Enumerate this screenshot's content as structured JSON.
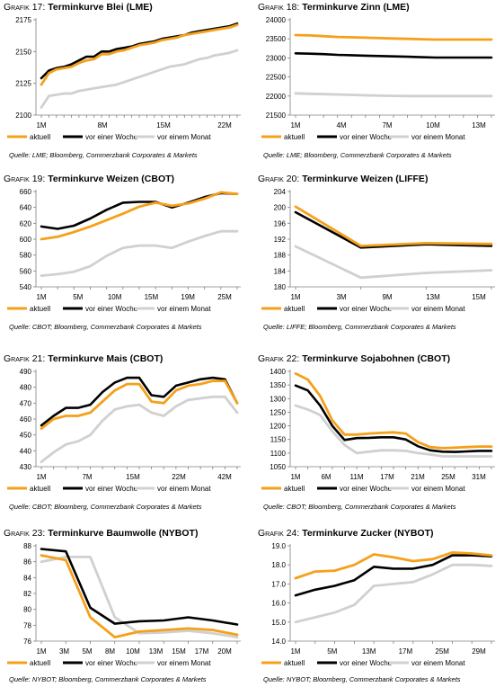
{
  "colors": {
    "aktuell": "#f5a01a",
    "woche": "#000000",
    "monat": "#d0d0d0",
    "axis": "#7f7f7f"
  },
  "legend": {
    "aktuell": "aktuell",
    "woche": "vor einer Woche",
    "monat": "vor einem Monat"
  },
  "chart_data": [
    {
      "type": "line",
      "label": "Grafik 17:",
      "title": "Terminkurve Blei (LME)",
      "ylim": [
        2100,
        2175
      ],
      "yticks": [
        2100,
        2125,
        2150,
        2175
      ],
      "x": [
        "1M",
        "2M",
        "3M",
        "4M",
        "5M",
        "6M",
        "7M",
        "8M",
        "9M",
        "10M",
        "11M",
        "12M",
        "13M",
        "14M",
        "15M",
        "16M",
        "17M",
        "18M",
        "19M",
        "20M",
        "21M",
        "22M",
        "23M",
        "24M",
        "25M",
        "26M",
        "27M"
      ],
      "tick_labels": [
        "1M",
        "8M",
        "15M",
        "22M"
      ],
      "series": [
        {
          "key": "aktuell",
          "values": [
            2124,
            2133,
            2136,
            2137,
            2138,
            2141,
            2143,
            2144,
            2148,
            2148,
            2150,
            2151,
            2153,
            2155,
            2156,
            2157,
            2159,
            2160,
            2161,
            2163,
            2164,
            2165,
            2166,
            2167,
            2168,
            2169,
            2171
          ]
        },
        {
          "key": "woche",
          "values": [
            2129,
            2135,
            2137,
            2138,
            2140,
            2143,
            2146,
            2146,
            2150,
            2150,
            2152,
            2153,
            2154,
            2156,
            2157,
            2158,
            2160,
            2161,
            2162,
            2163,
            2165,
            2166,
            2167,
            2168,
            2169,
            2170,
            2172
          ]
        },
        {
          "key": "monat",
          "values": [
            2106,
            2115,
            2116,
            2117,
            2117,
            2119,
            2120,
            2121,
            2122,
            2123,
            2124,
            2126,
            2128,
            2130,
            2132,
            2134,
            2136,
            2138,
            2139,
            2140,
            2142,
            2144,
            2145,
            2147,
            2148,
            2149,
            2151
          ]
        }
      ],
      "source": "Quelle: LME; Bloomberg, Commerzbank Corporates & Markets"
    },
    {
      "type": "line",
      "label": "Grafik 18:",
      "title": "Terminkurve Zinn (LME)",
      "ylim": [
        21500,
        24000
      ],
      "yticks": [
        21500,
        22000,
        22500,
        23000,
        23500,
        24000
      ],
      "x": [
        "1M",
        "2M",
        "3M",
        "4M",
        "5M",
        "6M",
        "7M",
        "8M",
        "9M",
        "10M",
        "11M",
        "12M",
        "13M",
        "14M",
        "15M"
      ],
      "tick_labels": [
        "1M",
        "4M",
        "7M",
        "10M",
        "13M"
      ],
      "series": [
        {
          "key": "aktuell",
          "values": [
            23600,
            23590,
            23570,
            23550,
            23540,
            23530,
            23520,
            23510,
            23500,
            23490,
            23480,
            23480,
            23480,
            23480,
            23480
          ]
        },
        {
          "key": "woche",
          "values": [
            23120,
            23110,
            23100,
            23080,
            23070,
            23060,
            23050,
            23040,
            23030,
            23020,
            23010,
            23010,
            23010,
            23010,
            23010
          ]
        },
        {
          "key": "monat",
          "values": [
            22070,
            22060,
            22050,
            22040,
            22030,
            22020,
            22010,
            22005,
            22000,
            22000,
            22000,
            22000,
            22000,
            22000,
            22000
          ]
        }
      ],
      "source": "Quelle: LME; Bloomberg, Commerzbank Corporates & Markets"
    },
    {
      "type": "line",
      "label": "Grafik 19:",
      "title": "Terminkurve Weizen (CBOT)",
      "ylim": [
        540,
        660
      ],
      "yticks": [
        540,
        560,
        580,
        600,
        620,
        640,
        660
      ],
      "x": [
        "1M",
        "3M",
        "5M",
        "7M",
        "8M",
        "10M",
        "12M",
        "15M",
        "17M",
        "19M",
        "22M",
        "25M",
        "27M"
      ],
      "tick_labels": [
        "1M",
        "5M",
        "10M",
        "15M",
        "19M",
        "25M"
      ],
      "series": [
        {
          "key": "aktuell",
          "values": [
            600,
            603,
            609,
            616,
            624,
            632,
            641,
            646,
            642,
            645,
            651,
            659,
            657
          ]
        },
        {
          "key": "woche",
          "values": [
            616,
            613,
            617,
            626,
            637,
            646,
            647,
            647,
            640,
            646,
            653,
            658,
            657
          ]
        },
        {
          "key": "monat",
          "values": [
            554,
            556,
            559,
            566,
            579,
            589,
            592,
            592,
            589,
            597,
            604,
            610,
            610
          ]
        }
      ],
      "source": "Quelle: CBOT; Bloomberg, Commerzbank Corporates & Markets"
    },
    {
      "type": "line",
      "label": "Grafik 20:",
      "title": "Terminkurve Weizen (LIFFE)",
      "ylim": [
        180,
        204
      ],
      "yticks": [
        180,
        184,
        188,
        192,
        196,
        200,
        204
      ],
      "x": [
        "1M",
        "9M",
        "13M",
        "15M"
      ],
      "tick_labels": [
        "1M",
        "3M",
        "9M",
        "13M",
        "15M"
      ],
      "series": [
        {
          "key": "aktuell",
          "values": [
            200.2,
            190.3,
            191,
            190.8
          ]
        },
        {
          "key": "woche",
          "values": [
            198.8,
            189.9,
            190.7,
            190.3
          ]
        },
        {
          "key": "monat",
          "values": [
            190.2,
            182.3,
            183.5,
            184.2
          ]
        }
      ],
      "source": "Quelle: LIFFE; Bloomberg, Commerzbank Corporates & Markets"
    },
    {
      "type": "line",
      "label": "Grafik 21:",
      "title": "Terminkurve Mais (CBOT)",
      "ylim": [
        430,
        490
      ],
      "yticks": [
        430,
        440,
        450,
        460,
        470,
        480,
        490
      ],
      "x": [
        "1M",
        "3M",
        "5M",
        "7M",
        "8M",
        "10M",
        "12M",
        "15M",
        "17M",
        "19M",
        "22M",
        "25M",
        "27M",
        "34M",
        "39M",
        "42M",
        "47M"
      ],
      "tick_labels": [
        "1M",
        "7M",
        "15M",
        "22M",
        "42M"
      ],
      "series": [
        {
          "key": "aktuell",
          "values": [
            454,
            460,
            462,
            462,
            464,
            471,
            478,
            482,
            482,
            471,
            470,
            478,
            481,
            482,
            484,
            484,
            470
          ]
        },
        {
          "key": "woche",
          "values": [
            456,
            462,
            467,
            467,
            469,
            477,
            483,
            486,
            486,
            475,
            474,
            481,
            483,
            485,
            486,
            485,
            470
          ]
        },
        {
          "key": "monat",
          "values": [
            433,
            439,
            444,
            446,
            450,
            459,
            466,
            468,
            469,
            464,
            462,
            468,
            472,
            473,
            474,
            474,
            464
          ]
        }
      ],
      "source": "Quelle: CBOT; Bloomberg, Commerzbank Corporates & Markets"
    },
    {
      "type": "line",
      "label": "Grafik 22:",
      "title": "Terminkurve Sojabohnen (CBOT)",
      "ylim": [
        1050,
        1400
      ],
      "yticks": [
        1050,
        1100,
        1150,
        1200,
        1250,
        1300,
        1350,
        1400
      ],
      "x": [
        "1M",
        "3M",
        "5M",
        "6M",
        "7M",
        "9M",
        "11M",
        "13M",
        "15M",
        "17M",
        "19M",
        "21M",
        "23M",
        "25M",
        "27M",
        "29M",
        "31M"
      ],
      "tick_labels": [
        "1M",
        "6M",
        "11M",
        "17M",
        "21M",
        "25M",
        "31M"
      ],
      "series": [
        {
          "key": "aktuell",
          "values": [
            1392,
            1370,
            1310,
            1220,
            1168,
            1168,
            1172,
            1174,
            1176,
            1172,
            1140,
            1122,
            1118,
            1120,
            1122,
            1124,
            1124
          ]
        },
        {
          "key": "woche",
          "values": [
            1348,
            1330,
            1275,
            1200,
            1148,
            1155,
            1156,
            1158,
            1158,
            1150,
            1125,
            1110,
            1105,
            1104,
            1106,
            1108,
            1108
          ]
        },
        {
          "key": "monat",
          "values": [
            1275,
            1260,
            1240,
            1180,
            1130,
            1100,
            1105,
            1110,
            1110,
            1108,
            1100,
            1095,
            1088,
            1088,
            1088,
            1088,
            1088
          ]
        }
      ],
      "source": "Quelle: CBOT; Bloomberg, Commerzbank Corporates & Markets"
    },
    {
      "type": "line",
      "label": "Grafik 23:",
      "title": "Terminkurve Baumwolle (NYBOT)",
      "ylim": [
        76,
        88
      ],
      "yticks": [
        76,
        78,
        80,
        82,
        84,
        86,
        88
      ],
      "x": [
        "1M",
        "3M",
        "5M",
        "8M",
        "10M",
        "13M",
        "15M",
        "17M",
        "20M"
      ],
      "tick_labels": [
        "1M",
        "3M",
        "5M",
        "8M",
        "10M",
        "13M",
        "15M",
        "17M",
        "20M"
      ],
      "series": [
        {
          "key": "aktuell",
          "values": [
            86.8,
            86.2,
            79.0,
            76.5,
            77.2,
            77.4,
            77.6,
            77.4,
            76.8
          ]
        },
        {
          "key": "woche",
          "values": [
            87.6,
            87.3,
            80.2,
            78.2,
            78.5,
            78.6,
            79.0,
            78.6,
            78.1
          ]
        },
        {
          "key": "monat",
          "values": [
            86.0,
            86.6,
            86.6,
            79.0,
            77.0,
            77.1,
            77.3,
            77.0,
            76.5
          ]
        }
      ],
      "source": "Quelle: NYBOT; Bloomberg, Commerzbank Corporates & Markets"
    },
    {
      "type": "line",
      "label": "Grafik 24:",
      "title": "Terminkurve Zucker (NYBOT)",
      "ylim": [
        14.0,
        19.0
      ],
      "yticks": [
        14.0,
        15.0,
        16.0,
        17.0,
        18.0,
        19.0
      ],
      "x": [
        "1M",
        "3M",
        "5M",
        "7M",
        "10M",
        "13M",
        "17M",
        "21M",
        "25M",
        "29M",
        "31M"
      ],
      "tick_labels": [
        "1M",
        "5M",
        "13M",
        "17M",
        "25M",
        "29M"
      ],
      "series": [
        {
          "key": "aktuell",
          "values": [
            17.3,
            17.65,
            17.7,
            18.0,
            18.55,
            18.4,
            18.2,
            18.3,
            18.65,
            18.6,
            18.5
          ]
        },
        {
          "key": "woche",
          "values": [
            16.4,
            16.7,
            16.9,
            17.2,
            17.9,
            17.8,
            17.8,
            18.0,
            18.5,
            18.5,
            18.45
          ]
        },
        {
          "key": "monat",
          "values": [
            15.0,
            15.25,
            15.5,
            15.9,
            16.9,
            17.0,
            17.1,
            17.5,
            18.0,
            18.0,
            17.95
          ]
        }
      ],
      "source": "Quelle: NYBOT; Bloomberg, Commerzbank Corporates & Markets"
    }
  ]
}
